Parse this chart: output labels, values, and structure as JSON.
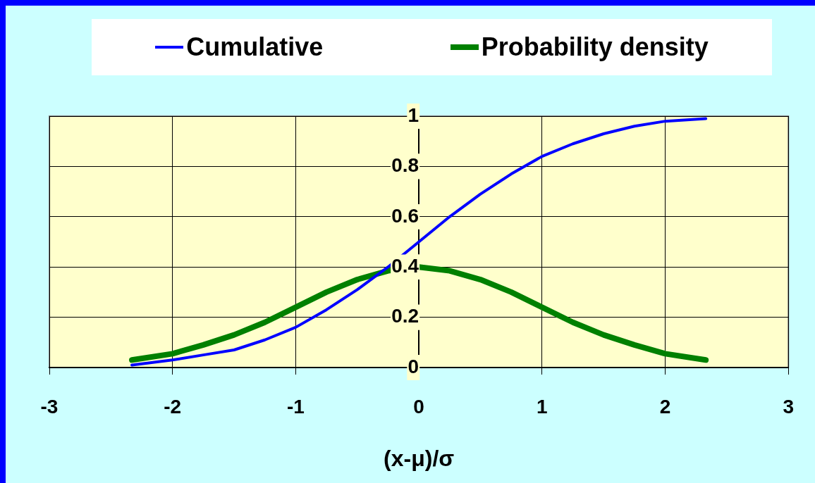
{
  "chart_data": {
    "type": "line",
    "xlabel": "(x-μ)/σ",
    "xlim": [
      -3,
      3
    ],
    "xticks": [
      -3,
      -2,
      -1,
      0,
      1,
      2,
      3
    ],
    "ylim": [
      0,
      1
    ],
    "yticks": [
      0,
      0.2,
      0.4,
      0.6,
      0.8,
      1
    ],
    "grid": true,
    "legend": "top",
    "marker": "none",
    "line_style": "solid",
    "series": [
      {
        "name": "Cumulative",
        "color": "#0000ff",
        "x": [
          -2.33,
          -2,
          -1.75,
          -1.5,
          -1.25,
          -1,
          -0.75,
          -0.5,
          -0.25,
          0,
          0.25,
          0.5,
          0.75,
          1,
          1.25,
          1.5,
          1.75,
          2,
          2.33
        ],
        "values": [
          0.01,
          0.03,
          0.05,
          0.07,
          0.11,
          0.16,
          0.23,
          0.31,
          0.4,
          0.5,
          0.6,
          0.69,
          0.77,
          0.84,
          0.89,
          0.93,
          0.96,
          0.98,
          0.99
        ]
      },
      {
        "name": "Probability density",
        "color": "#008000",
        "x": [
          -2.33,
          -2,
          -1.75,
          -1.5,
          -1.25,
          -1,
          -0.75,
          -0.5,
          -0.25,
          0,
          0.25,
          0.5,
          0.75,
          1,
          1.25,
          1.5,
          1.75,
          2,
          2.33
        ],
        "values": [
          0.03,
          0.055,
          0.09,
          0.13,
          0.18,
          0.24,
          0.3,
          0.35,
          0.385,
          0.4,
          0.385,
          0.35,
          0.3,
          0.24,
          0.18,
          0.13,
          0.09,
          0.055,
          0.03
        ]
      }
    ]
  }
}
